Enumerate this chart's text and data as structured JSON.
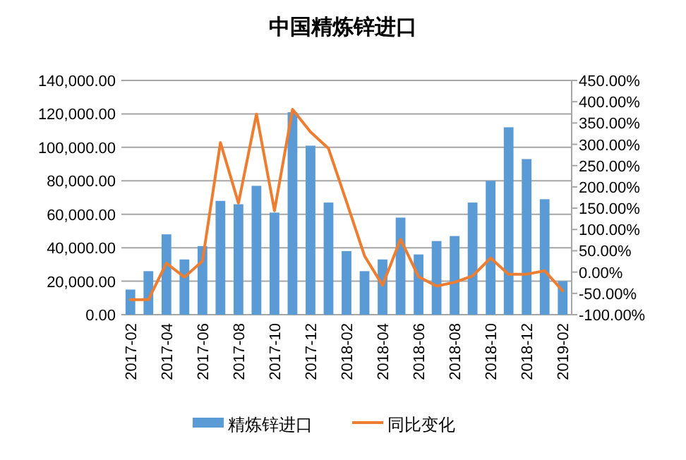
{
  "chart_data": {
    "type": "bar",
    "title": "中国精炼锌进口",
    "categories": [
      "2017-02",
      null,
      "2017-04",
      null,
      "2017-06",
      null,
      "2017-08",
      null,
      "2017-10",
      null,
      "2017-12",
      null,
      "2018-02",
      null,
      "2018-04",
      null,
      "2018-06",
      null,
      "2018-08",
      null,
      "2018-10",
      null,
      "2018-12",
      null,
      "2019-02"
    ],
    "series": [
      {
        "name": "精炼锌进口",
        "color": "#5b9bd5",
        "values": [
          15000,
          26000,
          48000,
          33000,
          41000,
          68000,
          66000,
          77000,
          61000,
          121000,
          101000,
          67000,
          38000,
          26000,
          33000,
          58000,
          36000,
          44000,
          47000,
          67000,
          80000,
          112000,
          93000,
          69000,
          20000
        ]
      },
      {
        "name": "同比变化",
        "type": "line",
        "axis": "y2",
        "color": "#ed7d31",
        "values": [
          -65,
          -65,
          21,
          -12,
          26,
          304,
          162,
          371,
          144,
          382,
          329,
          290,
          165,
          38,
          -31,
          77,
          -11,
          -33,
          -24,
          -9,
          33,
          -5,
          -5,
          3,
          -44
        ]
      }
    ],
    "ylim": [
      0,
      140000
    ],
    "yticks": [
      {
        "value": 0,
        "label": "0.00"
      },
      {
        "value": 20000,
        "label": "20,000.00"
      },
      {
        "value": 40000,
        "label": "40,000.00"
      },
      {
        "value": 60000,
        "label": "60,000.00"
      },
      {
        "value": 80000,
        "label": "80,000.00"
      },
      {
        "value": 100000,
        "label": "100,000.00"
      },
      {
        "value": 120000,
        "label": "120,000.00"
      },
      {
        "value": 140000,
        "label": "140,000.00"
      }
    ],
    "y2lim": [
      -100,
      450
    ],
    "y2ticks": [
      {
        "value": -100,
        "label": "-100.00%"
      },
      {
        "value": -50,
        "label": "-50.00%"
      },
      {
        "value": 0,
        "label": "0.00%"
      },
      {
        "value": 50,
        "label": "50.00%"
      },
      {
        "value": 100,
        "label": "100.00%"
      },
      {
        "value": 150,
        "label": "150.00%"
      },
      {
        "value": 200,
        "label": "200.00%"
      },
      {
        "value": 250,
        "label": "250.00%"
      },
      {
        "value": 300,
        "label": "300.00%"
      },
      {
        "value": 350,
        "label": "350.00%"
      },
      {
        "value": 400,
        "label": "400.00%"
      },
      {
        "value": 450,
        "label": "450.00%"
      }
    ],
    "grid": "y",
    "legend": "bottom",
    "marker": "none",
    "line_style": "solid"
  }
}
